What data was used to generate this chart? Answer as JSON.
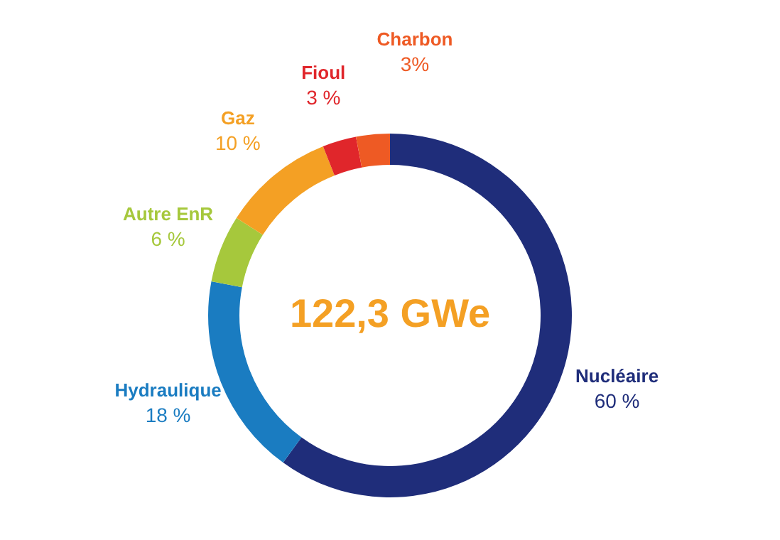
{
  "chart_data": {
    "type": "donut",
    "title": "122,3 GWe",
    "categories": [
      "Nucléaire",
      "Hydraulique",
      "Autre EnR",
      "Gaz",
      "Fioul",
      "Charbon"
    ],
    "values": [
      60,
      18,
      6,
      10,
      3,
      3
    ],
    "value_labels": [
      "60 %",
      "18 %",
      "6 %",
      "10 %",
      "3 %",
      "3%"
    ],
    "colors": [
      "#1f2d7a",
      "#1a7cc1",
      "#a6c83c",
      "#f4a024",
      "#e0262b",
      "#ee5a24"
    ]
  }
}
